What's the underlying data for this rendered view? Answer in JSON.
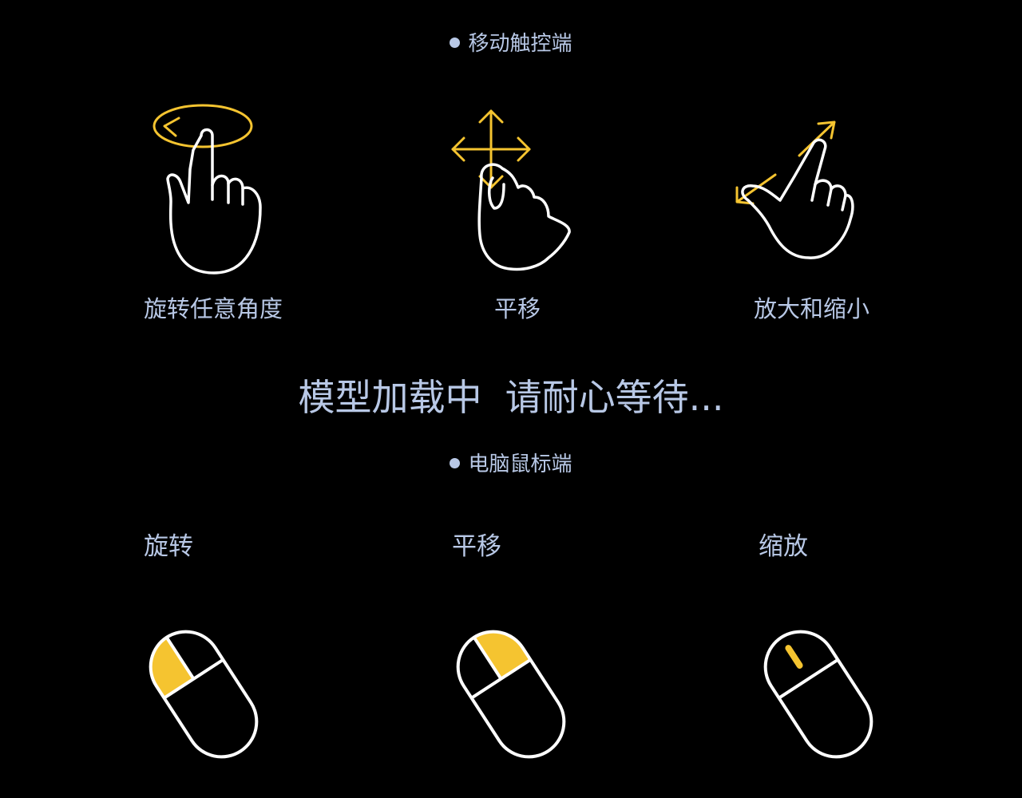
{
  "colors": {
    "background": "#000000",
    "text": "#b8c8e6",
    "accent": "#f5c430",
    "outline": "#ffffff"
  },
  "mobile": {
    "title": "移动触控端",
    "gestures": [
      {
        "label": "旋转任意角度",
        "icon": "rotate-gesture-icon"
      },
      {
        "label": "平移",
        "icon": "pan-gesture-icon"
      },
      {
        "label": "放大和缩小",
        "icon": "pinch-zoom-gesture-icon"
      }
    ]
  },
  "loading_text": "模型加载中  请耐心等待...",
  "desktop": {
    "title": "电脑鼠标端",
    "controls": [
      {
        "label": "旋转",
        "icon": "mouse-left-button-icon"
      },
      {
        "label": "平移",
        "icon": "mouse-right-button-icon"
      },
      {
        "label": "缩放",
        "icon": "mouse-scroll-wheel-icon"
      }
    ]
  }
}
